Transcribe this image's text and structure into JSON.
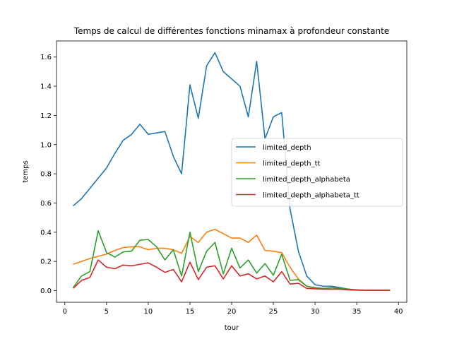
{
  "chart_data": {
    "type": "line",
    "title": "Temps de calcul de différentes fonctions minamax à profondeur constante",
    "xlabel": "tour",
    "ylabel": "temps",
    "xlim": [
      -1,
      41
    ],
    "ylim": [
      -0.08,
      1.71
    ],
    "xticks": [
      0,
      5,
      10,
      15,
      20,
      25,
      30,
      35,
      40
    ],
    "yticks": [
      0.0,
      0.2,
      0.4,
      0.6,
      0.8,
      1.0,
      1.2,
      1.4,
      1.6
    ],
    "grid": false,
    "legend_position": "center-right",
    "x": [
      1,
      2,
      3,
      4,
      5,
      6,
      7,
      8,
      9,
      10,
      11,
      12,
      13,
      14,
      15,
      16,
      17,
      18,
      19,
      20,
      21,
      22,
      23,
      24,
      25,
      26,
      27,
      28,
      29,
      30,
      31,
      32,
      33,
      34,
      35,
      36,
      37,
      38,
      39
    ],
    "series": [
      {
        "name": "limited_depth",
        "color": "#1f77b4",
        "values": [
          0.58,
          0.63,
          0.7,
          0.77,
          0.84,
          0.94,
          1.03,
          1.07,
          1.14,
          1.07,
          1.08,
          1.09,
          0.92,
          0.8,
          1.41,
          1.18,
          1.54,
          1.63,
          1.5,
          1.45,
          1.4,
          1.19,
          1.57,
          1.04,
          1.19,
          1.22,
          0.56,
          0.27,
          0.1,
          0.04,
          0.03,
          0.03,
          0.02,
          0.01,
          0.005,
          0.003,
          0.002,
          0.002,
          0.002
        ]
      },
      {
        "name": "limited_depth_tt",
        "color": "#ff7f0e",
        "values": [
          0.18,
          0.2,
          0.22,
          0.235,
          0.25,
          0.275,
          0.295,
          0.3,
          0.3,
          0.28,
          0.29,
          0.29,
          0.28,
          0.255,
          0.37,
          0.33,
          0.4,
          0.42,
          0.39,
          0.36,
          0.36,
          0.33,
          0.38,
          0.275,
          0.27,
          0.26,
          0.16,
          0.08,
          0.03,
          0.015,
          0.01,
          0.01,
          0.01,
          0.005,
          0.003,
          0.002,
          0.002,
          0.002,
          0.002
        ]
      },
      {
        "name": "limited_depth_alphabeta",
        "color": "#2ca02c",
        "values": [
          0.02,
          0.1,
          0.13,
          0.41,
          0.26,
          0.23,
          0.265,
          0.27,
          0.345,
          0.35,
          0.3,
          0.21,
          0.28,
          0.1,
          0.4,
          0.13,
          0.27,
          0.33,
          0.115,
          0.29,
          0.155,
          0.21,
          0.12,
          0.185,
          0.105,
          0.25,
          0.07,
          0.075,
          0.03,
          0.02,
          0.015,
          0.02,
          0.015,
          0.01,
          0.005,
          0.003,
          0.002,
          0.002,
          0.002
        ]
      },
      {
        "name": "limited_depth_alphabeta_tt",
        "color": "#d62728",
        "values": [
          0.015,
          0.07,
          0.09,
          0.21,
          0.16,
          0.15,
          0.175,
          0.17,
          0.18,
          0.19,
          0.16,
          0.125,
          0.145,
          0.06,
          0.195,
          0.075,
          0.16,
          0.17,
          0.08,
          0.17,
          0.1,
          0.115,
          0.08,
          0.1,
          0.06,
          0.13,
          0.045,
          0.05,
          0.015,
          0.012,
          0.01,
          0.01,
          0.01,
          0.005,
          0.003,
          0.002,
          0.002,
          0.002,
          0.002
        ]
      }
    ]
  }
}
